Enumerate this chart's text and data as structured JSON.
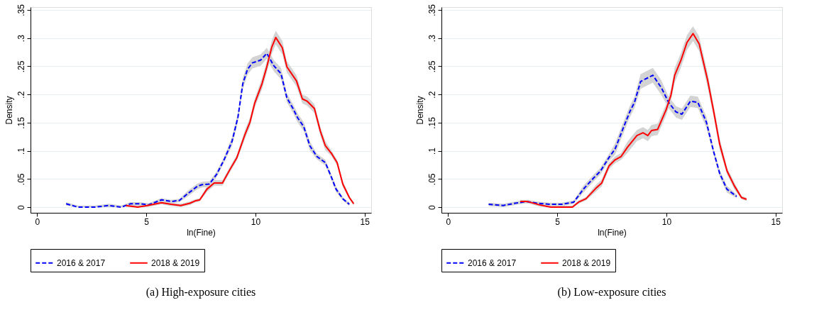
{
  "chart_data": [
    {
      "type": "line",
      "title": "(a) High-exposure cities",
      "xlabel": "ln(Fine)",
      "ylabel": "Density",
      "xlim": [
        -0.3,
        15.3
      ],
      "ylim": [
        -0.01,
        0.355
      ],
      "xticks": [
        0,
        5,
        10,
        15
      ],
      "yticks": [
        0,
        {
          "value": 0.05,
          "label": ".05"
        },
        {
          "value": 0.1,
          "label": ".1"
        },
        {
          "value": 0.15,
          "label": ".15"
        },
        {
          "value": 0.2,
          "label": ".2"
        },
        {
          "value": 0.25,
          "label": ".25"
        },
        {
          "value": 0.3,
          "label": ".3"
        },
        {
          "value": 0.35,
          "label": ".35"
        }
      ],
      "grid": "y",
      "legend": "bottom",
      "series": [
        {
          "name": "2016 & 2017",
          "color": "#0000ff",
          "line_style": "dashed",
          "x": [
            1.33,
            1.88,
            2.64,
            3.3,
            3.85,
            4.28,
            4.72,
            5.1,
            5.7,
            6.14,
            6.52,
            6.9,
            7.34,
            7.56,
            7.89,
            8.22,
            8.55,
            8.93,
            9.2,
            9.42,
            9.64,
            9.86,
            10.24,
            10.52,
            10.84,
            11.17,
            11.44,
            11.72,
            11.94,
            12.21,
            12.49,
            12.81,
            13.2,
            13.47,
            13.69,
            14.0,
            14.3
          ],
          "values": [
            0.006,
            0,
            0,
            0.003,
            0,
            0.006,
            0.006,
            0.004,
            0.013,
            0.01,
            0.012,
            0.024,
            0.037,
            0.04,
            0.041,
            0.058,
            0.083,
            0.117,
            0.16,
            0.219,
            0.245,
            0.256,
            0.261,
            0.273,
            0.251,
            0.237,
            0.194,
            0.175,
            0.158,
            0.143,
            0.109,
            0.09,
            0.079,
            0.054,
            0.032,
            0.015,
            0.005
          ],
          "lower": [
            0.003,
            0,
            0,
            0,
            0,
            0.003,
            0.003,
            0.001,
            0.01,
            0.007,
            0.009,
            0.019,
            0.032,
            0.035,
            0.036,
            0.053,
            0.078,
            0.109,
            0.152,
            0.209,
            0.235,
            0.246,
            0.251,
            0.263,
            0.241,
            0.227,
            0.186,
            0.167,
            0.15,
            0.135,
            0.101,
            0.085,
            0.074,
            0.049,
            0.027,
            0.012,
            0.002
          ],
          "upper": [
            0.009,
            0.003,
            0.003,
            0.006,
            0.003,
            0.009,
            0.009,
            0.007,
            0.016,
            0.013,
            0.015,
            0.029,
            0.042,
            0.045,
            0.046,
            0.063,
            0.088,
            0.125,
            0.168,
            0.229,
            0.255,
            0.266,
            0.271,
            0.283,
            0.261,
            0.247,
            0.202,
            0.183,
            0.166,
            0.151,
            0.117,
            0.095,
            0.084,
            0.059,
            0.037,
            0.018,
            0.008
          ]
        },
        {
          "name": "2018 & 2019",
          "color": "#ff0000",
          "line_style": "solid",
          "x": [
            4.07,
            4.61,
            5.05,
            5.7,
            6.14,
            6.58,
            7.0,
            7.23,
            7.45,
            7.78,
            8.11,
            8.49,
            8.82,
            9.15,
            9.53,
            9.75,
            9.97,
            10.3,
            10.52,
            10.74,
            10.93,
            11.23,
            11.44,
            11.88,
            12.15,
            12.37,
            12.7,
            12.97,
            13.2,
            13.47,
            13.74,
            14.0,
            14.3,
            14.5
          ],
          "values": [
            0.003,
            0,
            0.003,
            0.008,
            0.005,
            0.003,
            0.007,
            0.011,
            0.013,
            0.032,
            0.043,
            0.043,
            0.066,
            0.088,
            0.13,
            0.151,
            0.185,
            0.219,
            0.249,
            0.283,
            0.301,
            0.283,
            0.249,
            0.224,
            0.192,
            0.188,
            0.175,
            0.135,
            0.109,
            0.096,
            0.079,
            0.041,
            0.017,
            0.006
          ],
          "lower": [
            0,
            0,
            0,
            0.005,
            0.002,
            0,
            0.004,
            0.008,
            0.01,
            0.027,
            0.038,
            0.038,
            0.061,
            0.083,
            0.122,
            0.143,
            0.177,
            0.209,
            0.239,
            0.271,
            0.289,
            0.271,
            0.239,
            0.214,
            0.184,
            0.18,
            0.167,
            0.127,
            0.101,
            0.091,
            0.074,
            0.036,
            0.014,
            0.003
          ],
          "upper": [
            0.006,
            0.003,
            0.006,
            0.011,
            0.008,
            0.006,
            0.01,
            0.014,
            0.016,
            0.037,
            0.048,
            0.048,
            0.071,
            0.093,
            0.138,
            0.159,
            0.193,
            0.229,
            0.259,
            0.295,
            0.313,
            0.295,
            0.259,
            0.234,
            0.2,
            0.196,
            0.183,
            0.143,
            0.117,
            0.101,
            0.084,
            0.046,
            0.02,
            0.009
          ]
        }
      ]
    },
    {
      "type": "line",
      "title": "(b) Low-exposure cities",
      "xlabel": "ln(Fine)",
      "ylabel": "Density",
      "xlim": [
        -0.3,
        15.3
      ],
      "ylim": [
        -0.01,
        0.355
      ],
      "xticks": [
        0,
        5,
        10,
        15
      ],
      "yticks": [
        0,
        {
          "value": 0.05,
          "label": ".05"
        },
        {
          "value": 0.1,
          "label": ".1"
        },
        {
          "value": 0.15,
          "label": ".15"
        },
        {
          "value": 0.2,
          "label": ".2"
        },
        {
          "value": 0.25,
          "label": ".25"
        },
        {
          "value": 0.3,
          "label": ".3"
        },
        {
          "value": 0.35,
          "label": ".35"
        }
      ],
      "grid": "y",
      "legend": "bottom",
      "series": [
        {
          "name": "2016 & 2017",
          "color": "#0000ff",
          "line_style": "dashed",
          "x": [
            1.86,
            2.53,
            3.08,
            3.59,
            4.09,
            4.64,
            5.2,
            5.76,
            6.2,
            6.65,
            6.98,
            7.37,
            7.65,
            7.98,
            8.32,
            8.54,
            8.82,
            9.38,
            9.77,
            10.1,
            10.44,
            10.71,
            11.1,
            11.44,
            11.83,
            12.16,
            12.44,
            12.77,
            13.22
          ],
          "values": [
            0.005,
            0.003,
            0.007,
            0.01,
            0.007,
            0.005,
            0.005,
            0.009,
            0.032,
            0.051,
            0.064,
            0.088,
            0.103,
            0.136,
            0.169,
            0.186,
            0.223,
            0.234,
            0.212,
            0.186,
            0.169,
            0.165,
            0.188,
            0.186,
            0.151,
            0.099,
            0.06,
            0.032,
            0.019
          ],
          "lower": [
            0.002,
            0,
            0.004,
            0.007,
            0.004,
            0.002,
            0.002,
            0.006,
            0.026,
            0.045,
            0.058,
            0.082,
            0.093,
            0.126,
            0.159,
            0.176,
            0.21,
            0.221,
            0.199,
            0.176,
            0.159,
            0.155,
            0.178,
            0.176,
            0.141,
            0.093,
            0.054,
            0.026,
            0.016
          ],
          "upper": [
            0.008,
            0.006,
            0.01,
            0.013,
            0.01,
            0.008,
            0.008,
            0.012,
            0.038,
            0.057,
            0.07,
            0.094,
            0.113,
            0.146,
            0.179,
            0.196,
            0.236,
            0.247,
            0.225,
            0.196,
            0.179,
            0.175,
            0.198,
            0.196,
            0.161,
            0.105,
            0.066,
            0.038,
            0.022
          ]
        },
        {
          "name": "2018 & 2019",
          "color": "#ff0000",
          "line_style": "solid",
          "x": [
            3.31,
            3.64,
            4.2,
            4.7,
            5.7,
            5.98,
            6.32,
            6.76,
            7.04,
            7.37,
            7.65,
            7.93,
            8.21,
            8.65,
            8.93,
            9.15,
            9.32,
            9.6,
            9.99,
            10.21,
            10.38,
            10.66,
            10.94,
            11.22,
            11.5,
            11.89,
            12.17,
            12.44,
            12.78,
            13.11,
            13.44,
            13.67
          ],
          "values": [
            0.01,
            0.01,
            0.004,
            0,
            0,
            0.009,
            0.015,
            0.033,
            0.043,
            0.073,
            0.084,
            0.09,
            0.106,
            0.127,
            0.132,
            0.127,
            0.136,
            0.138,
            0.173,
            0.199,
            0.234,
            0.26,
            0.292,
            0.308,
            0.29,
            0.225,
            0.169,
            0.112,
            0.064,
            0.038,
            0.017,
            0.014
          ],
          "lower": [
            0.007,
            0.007,
            0.001,
            0,
            0,
            0.006,
            0.012,
            0.027,
            0.037,
            0.067,
            0.078,
            0.084,
            0.096,
            0.117,
            0.122,
            0.117,
            0.126,
            0.128,
            0.163,
            0.189,
            0.221,
            0.247,
            0.279,
            0.295,
            0.277,
            0.212,
            0.159,
            0.102,
            0.058,
            0.032,
            0.014,
            0.011
          ],
          "upper": [
            0.013,
            0.013,
            0.007,
            0.003,
            0.003,
            0.012,
            0.018,
            0.039,
            0.049,
            0.079,
            0.09,
            0.096,
            0.116,
            0.137,
            0.142,
            0.137,
            0.146,
            0.148,
            0.183,
            0.209,
            0.247,
            0.273,
            0.305,
            0.321,
            0.303,
            0.238,
            0.179,
            0.122,
            0.07,
            0.044,
            0.02,
            0.017
          ]
        }
      ]
    }
  ]
}
